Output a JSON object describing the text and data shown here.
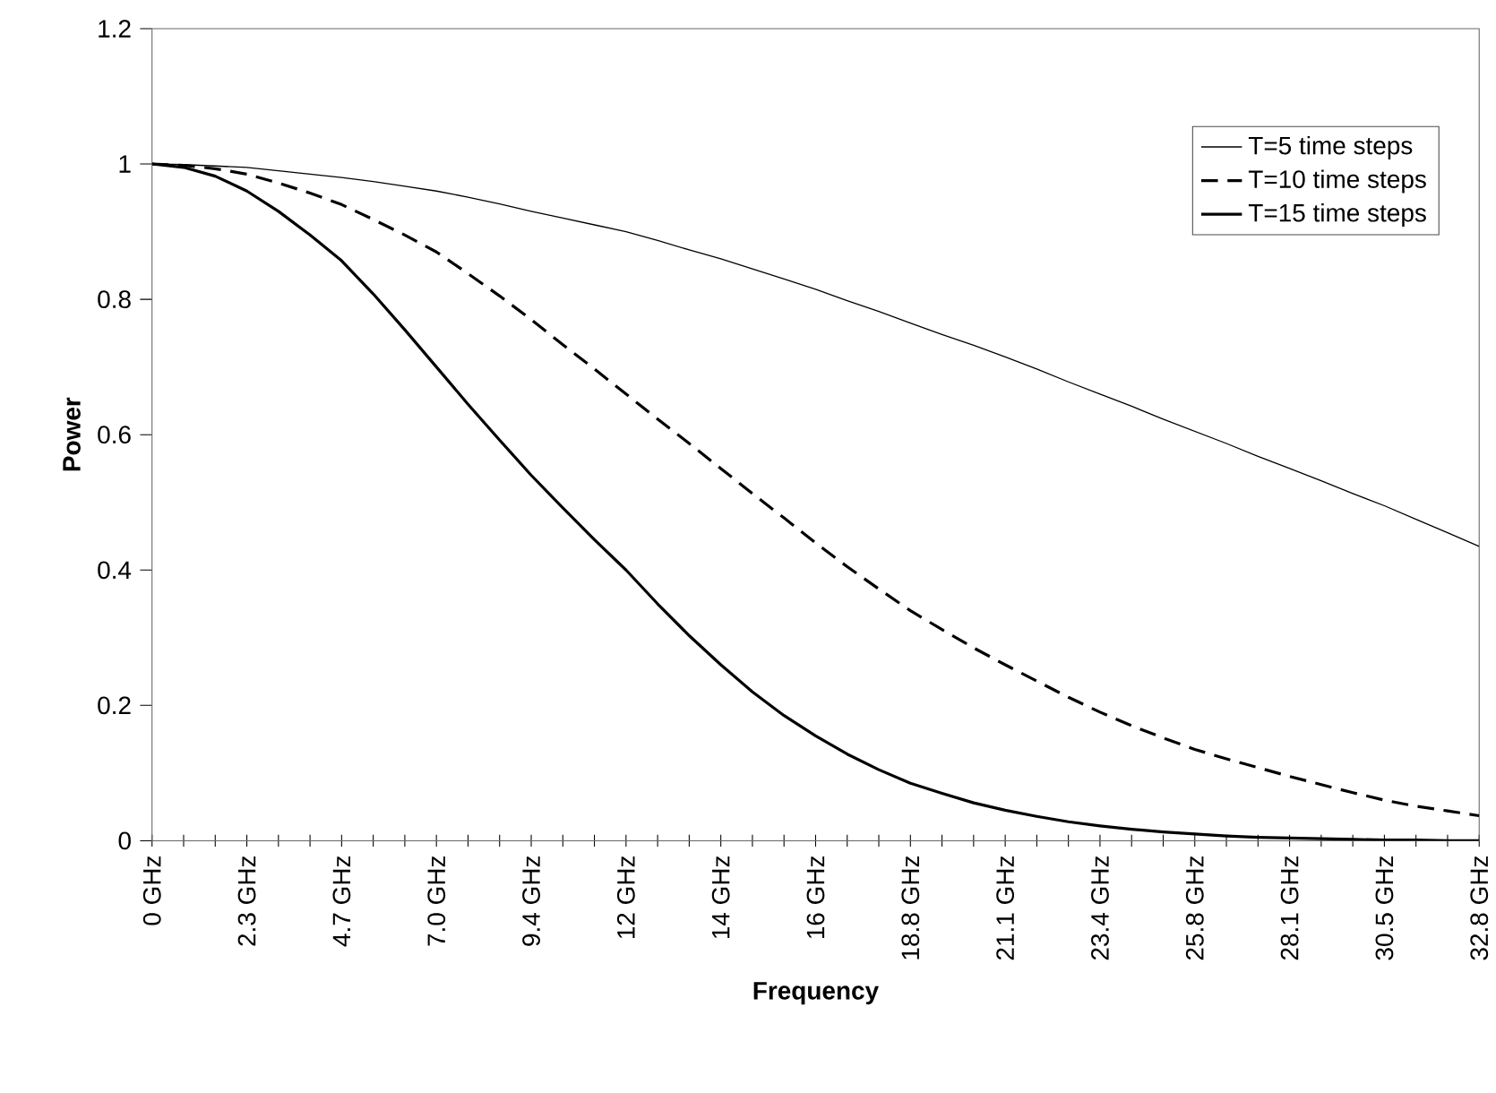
{
  "chart_data": {
    "type": "line",
    "xlabel": "Frequency",
    "ylabel": "Power",
    "ylim": [
      0,
      1.2
    ],
    "yticks": [
      0,
      0.2,
      0.4,
      0.6,
      0.8,
      1,
      1.2
    ],
    "categories": [
      "0 GHz",
      null,
      null,
      "2.3 GHz",
      null,
      null,
      "4.7 GHz",
      null,
      null,
      "7.0 GHz",
      null,
      null,
      "9.4 GHz",
      null,
      null,
      "12 GHz",
      null,
      null,
      "14 GHz",
      null,
      null,
      "16 GHz",
      null,
      null,
      "18.8 GHz",
      null,
      null,
      "21.1 GHz",
      null,
      null,
      "23.4 GHz",
      null,
      null,
      "25.8 GHz",
      null,
      null,
      "28.1 GHz",
      null,
      null,
      "30.5 GHz",
      null,
      null,
      "32.8 GHz"
    ],
    "series": [
      {
        "name": "T=5 time steps",
        "color": "#000000",
        "line_style": "solid",
        "values": [
          1,
          0.999,
          0.997,
          0.995,
          0.99,
          0.985,
          0.98,
          0.974,
          0.967,
          0.96,
          0.951,
          0.941,
          0.93,
          0.92,
          0.91,
          0.9,
          0.887,
          0.873,
          0.86,
          0.845,
          0.83,
          0.815,
          0.798,
          0.782,
          0.765,
          0.748,
          0.732,
          0.715,
          0.697,
          0.678,
          0.66,
          0.642,
          0.623,
          0.605,
          0.587,
          0.568,
          0.55,
          0.532,
          0.513,
          0.495,
          0.475,
          0.455,
          0.435
        ]
      },
      {
        "name": "T=10 time steps",
        "color": "#000000",
        "line_style": "dashed",
        "values": [
          1,
          0.998,
          0.993,
          0.985,
          0.972,
          0.957,
          0.94,
          0.918,
          0.895,
          0.87,
          0.838,
          0.805,
          0.77,
          0.733,
          0.697,
          0.66,
          0.623,
          0.587,
          0.55,
          0.513,
          0.477,
          0.44,
          0.405,
          0.372,
          0.34,
          0.312,
          0.285,
          0.26,
          0.236,
          0.212,
          0.19,
          0.17,
          0.152,
          0.135,
          0.121,
          0.108,
          0.095,
          0.083,
          0.071,
          0.06,
          0.051,
          0.044,
          0.037
        ]
      },
      {
        "name": "T=15 time steps",
        "color": "#000000",
        "line_style": "solid",
        "values": [
          1,
          0.995,
          0.982,
          0.96,
          0.93,
          0.895,
          0.857,
          0.808,
          0.755,
          0.7,
          0.645,
          0.592,
          0.54,
          0.492,
          0.445,
          0.4,
          0.35,
          0.303,
          0.26,
          0.22,
          0.185,
          0.155,
          0.128,
          0.105,
          0.085,
          0.07,
          0.056,
          0.045,
          0.036,
          0.028,
          0.022,
          0.017,
          0.013,
          0.01,
          0.007,
          0.005,
          0.004,
          0.003,
          0.002,
          0.001,
          0.001,
          0,
          0
        ]
      }
    ],
    "legend": "top right",
    "grid": false,
    "marker": "none"
  }
}
